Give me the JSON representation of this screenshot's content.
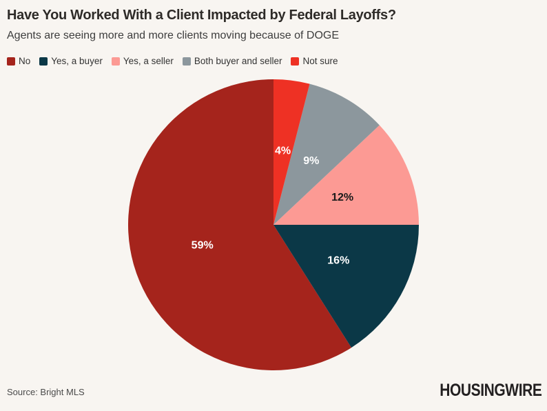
{
  "header": {
    "title": "Have You Worked With a Client Impacted by Federal Layoffs?",
    "subtitle": "Agents are seeing more and more clients moving because of DOGE"
  },
  "chart_data": {
    "type": "pie",
    "title": "Have You Worked With a Client Impacted by Federal Layoffs?",
    "subtitle": "Agents are seeing more and more clients moving because of DOGE",
    "categories": [
      "No",
      "Yes, a buyer",
      "Yes, a seller",
      "Both buyer and seller",
      "Not sure"
    ],
    "values": [
      59,
      16,
      12,
      9,
      4
    ],
    "slices": [
      {
        "label": "No",
        "value": 59,
        "display": "59%",
        "color": "#A5241C",
        "label_color": "#FFFFFF"
      },
      {
        "label": "Yes, a buyer",
        "value": 16,
        "display": "16%",
        "color": "#0B3847",
        "label_color": "#FFFFFF"
      },
      {
        "label": "Yes, a seller",
        "value": 12,
        "display": "12%",
        "color": "#FC9A94",
        "label_color": "#1A1A1A"
      },
      {
        "label": "Both buyer and seller",
        "value": 9,
        "display": "9%",
        "color": "#8C979D",
        "label_color": "#FFFFFF"
      },
      {
        "label": "Not sure",
        "value": 4,
        "display": "4%",
        "color": "#EE3124",
        "label_color": "#FFFFFF"
      }
    ],
    "legend_position": "top",
    "start_angle": "12 o'clock",
    "direction": "counterclockwise",
    "label_radius_fraction": 0.51,
    "grid": false
  },
  "footer": {
    "source": "Source: Bright MLS",
    "brand": "HOUSINGWIRE"
  },
  "colors": {
    "background": "#F8F5F1",
    "title_text": "#2E2B28",
    "subtitle_text": "#3D3D3D",
    "legend_text": "#333333",
    "source_text": "#4A4A4A",
    "brand_text": "#232021"
  }
}
